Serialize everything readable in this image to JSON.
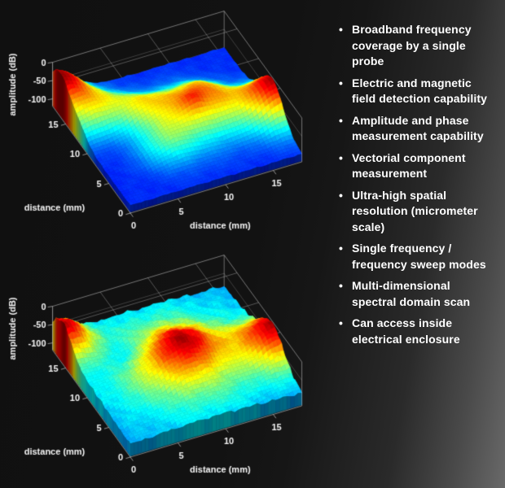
{
  "figure": {
    "background_left": "#121212",
    "background_right": "#696969",
    "text_color": "#ffffff",
    "axis_line_color": "#c8c8c8"
  },
  "right_panel": {
    "bullet_char": "•",
    "bullet_color": "#ffffff",
    "bullets": [
      "Broadband frequency coverage by a single probe",
      "Electric and magnetic field detection capability",
      "Amplitude and phase measurement capability",
      "Vectorial component measurement",
      "Ultra-high spatial resolution (micrometer scale)",
      "Single frequency / frequency sweep modes",
      "Multi-dimensional spectral domain scan",
      "Can access inside electrical enclosure"
    ]
  },
  "chart_data": [
    {
      "type": "surface3d",
      "name": "near-field-scan-top",
      "xlabel": "distance (mm)",
      "ylabel": "distance (mm)",
      "zlabel": "amplitude (dB)",
      "x_ticks": [
        0,
        5,
        10,
        15
      ],
      "y_ticks": [
        0,
        5,
        10,
        15
      ],
      "z_ticks": [
        0,
        -50,
        -100
      ],
      "x_range_mm": [
        0,
        18
      ],
      "y_range_mm": [
        0,
        18
      ],
      "z_range_db": [
        -120,
        0
      ],
      "colormap": "jet",
      "base_level_db": -100,
      "noise_db": 2.2,
      "peaks": [
        {
          "x": -0.3,
          "y": 16.4,
          "height_db": 97,
          "sigma": 2.2
        },
        {
          "x": 18.4,
          "y": 6.8,
          "height_db": 95,
          "sigma": 2.4
        },
        {
          "x": 9.8,
          "y": 9.0,
          "height_db": 58,
          "sigma": 3.0
        },
        {
          "x": 10.3,
          "y": 8.5,
          "height_db": 14,
          "sigma": 0.7
        },
        {
          "x": 3.3,
          "y": 13.4,
          "height_db": 34,
          "sigma": 2.0
        },
        {
          "x": 6.1,
          "y": 11.2,
          "height_db": 30,
          "sigma": 1.9
        },
        {
          "x": 13.4,
          "y": 8.2,
          "height_db": 26,
          "sigma": 2.1
        },
        {
          "x": 6.3,
          "y": 5.6,
          "height_db": 22,
          "sigma": 1.8
        },
        {
          "x": 12.5,
          "y": 11.5,
          "height_db": 20,
          "sigma": 1.7
        },
        {
          "x": 0.8,
          "y": 11.8,
          "height_db": 24,
          "sigma": 1.7
        }
      ]
    },
    {
      "type": "surface3d",
      "name": "near-field-scan-bottom",
      "xlabel": "distance (mm)",
      "ylabel": "distance (mm)",
      "zlabel": "amplitude (dB)",
      "x_ticks": [
        0,
        5,
        10,
        15
      ],
      "y_ticks": [
        0,
        5,
        10,
        15
      ],
      "z_ticks": [
        0,
        -50,
        -100
      ],
      "x_range_mm": [
        0,
        18
      ],
      "y_range_mm": [
        0,
        18
      ],
      "z_range_db": [
        -120,
        0
      ],
      "colormap": "jet",
      "base_level_db": -92,
      "noise_db": 5.0,
      "peaks": [
        {
          "x": 9.0,
          "y": 9.0,
          "height_db": 32,
          "sigma": 7.0
        },
        {
          "x": 9.2,
          "y": 8.6,
          "height_db": 54,
          "sigma": 2.9
        },
        {
          "x": -0.2,
          "y": 15.8,
          "height_db": 78,
          "sigma": 2.1
        },
        {
          "x": 18.4,
          "y": 6.8,
          "height_db": 76,
          "sigma": 2.5
        },
        {
          "x": 5.0,
          "y": 11.5,
          "height_db": -15,
          "sigma": 1.8
        }
      ]
    }
  ]
}
